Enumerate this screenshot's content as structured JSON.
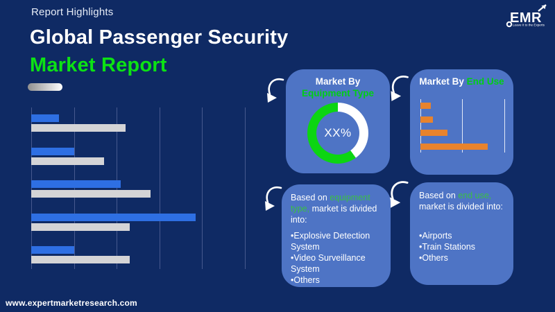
{
  "page": {
    "background": "#0f2a64",
    "panel_color": "#4e74c5"
  },
  "header": {
    "eyebrow": "Report Highlights",
    "title_line1": "Global Passenger Security",
    "title_line2": "Market Report",
    "accent_green": "#0ce214"
  },
  "logo": {
    "text": "EMR",
    "tagline": "Leave It to the Experts"
  },
  "chart_data": [
    {
      "id": "market-overview-bars",
      "type": "bar",
      "orientation": "horizontal",
      "title": "",
      "categories": [
        "Group 1",
        "Group 2",
        "Group 3",
        "Group 4",
        "Group 5"
      ],
      "series": [
        {
          "name": "series-blue",
          "color": "#2e6fe3",
          "values": [
            0.65,
            1.0,
            2.1,
            3.85,
            1.0
          ]
        },
        {
          "name": "series-gray",
          "color": "#d4d4d6",
          "values": [
            2.2,
            1.7,
            2.8,
            2.3,
            2.3
          ]
        }
      ],
      "xlim": [
        0,
        5
      ],
      "gridline_step": 1,
      "gridline_color": "#47598e",
      "axis_labels_visible": false,
      "legend": "none"
    },
    {
      "id": "equipment-type-donut",
      "type": "pie",
      "label": "XX%",
      "segments": [
        {
          "name": "highlight-segment",
          "color": "#ffffff",
          "value": 40
        },
        {
          "name": "remainder-segment",
          "color": "#0cd512",
          "value": 60
        }
      ]
    },
    {
      "id": "end-use-bars",
      "type": "bar",
      "orientation": "horizontal",
      "title": "",
      "categories": [
        "Bar 1",
        "Bar 2",
        "Bar 3",
        "Bar 4"
      ],
      "series": [
        {
          "name": "series-orange",
          "color": "#e8832d",
          "values": [
            0.25,
            0.3,
            0.65,
            1.6
          ]
        }
      ],
      "xlim": [
        0,
        2.2
      ],
      "gridline_step": 1,
      "gridline_color": "rgba(255,255,255,0.85)",
      "axis_labels_visible": false,
      "legend": "none"
    }
  ],
  "panels": {
    "equipment_chart": {
      "title_prefix": "Market By ",
      "title_highlight": "Equipment Type",
      "center_label": "XX%"
    },
    "end_use_chart": {
      "title_prefix": "Market By ",
      "title_highlight": "End Use"
    },
    "equipment_text": {
      "lead_prefix": "Based on ",
      "lead_highlight": "equipment type,",
      "lead_suffix": " market is divided into:",
      "bullets": [
        "Explosive Detection System",
        "Video Surveillance System",
        "Others"
      ]
    },
    "end_use_text": {
      "lead_prefix": "Based on ",
      "lead_highlight": "end use,",
      "lead_suffix": " market is divided into:",
      "bullets": [
        "Airports",
        "Train Stations",
        "Others"
      ]
    }
  },
  "footer": {
    "url": "www.expertmarketresearch.com"
  }
}
